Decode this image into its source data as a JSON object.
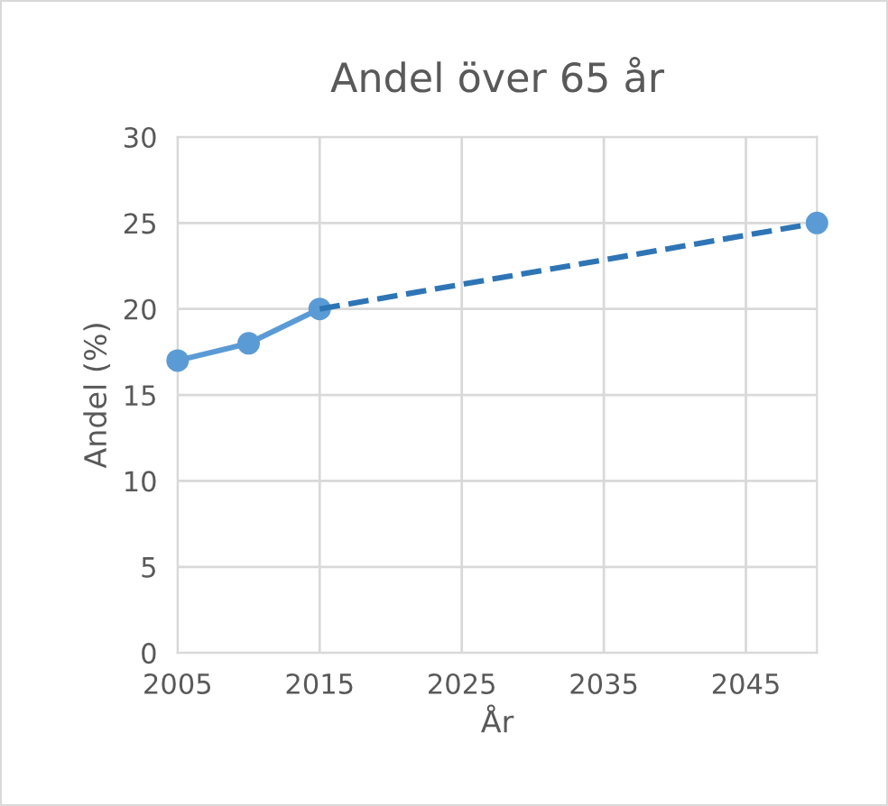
{
  "chart_data": {
    "type": "line",
    "title": "Andel över 65 år",
    "xlabel": "År",
    "ylabel": "Andel (%)",
    "xlim": [
      2005,
      2050
    ],
    "xticks": [
      2005,
      2015,
      2025,
      2035,
      2045
    ],
    "ylim": [
      0,
      30
    ],
    "yticks": [
      0,
      5,
      10,
      15,
      20,
      25,
      30
    ],
    "grid": true,
    "series": [
      {
        "color": "#5b9bd5",
        "x": [
          2005,
          2010,
          2015
        ],
        "values": [
          17,
          18,
          20
        ],
        "marker": "circle",
        "line_style": "solid"
      },
      {
        "color": "#2e75b6",
        "x": [
          2015,
          2050
        ],
        "values": [
          20,
          25
        ],
        "marker": "none",
        "line_style": "dashed"
      },
      {
        "type": "scatter",
        "color": "#5b9bd5",
        "x": [
          2050
        ],
        "values": [
          25
        ],
        "marker": "circle"
      }
    ]
  }
}
